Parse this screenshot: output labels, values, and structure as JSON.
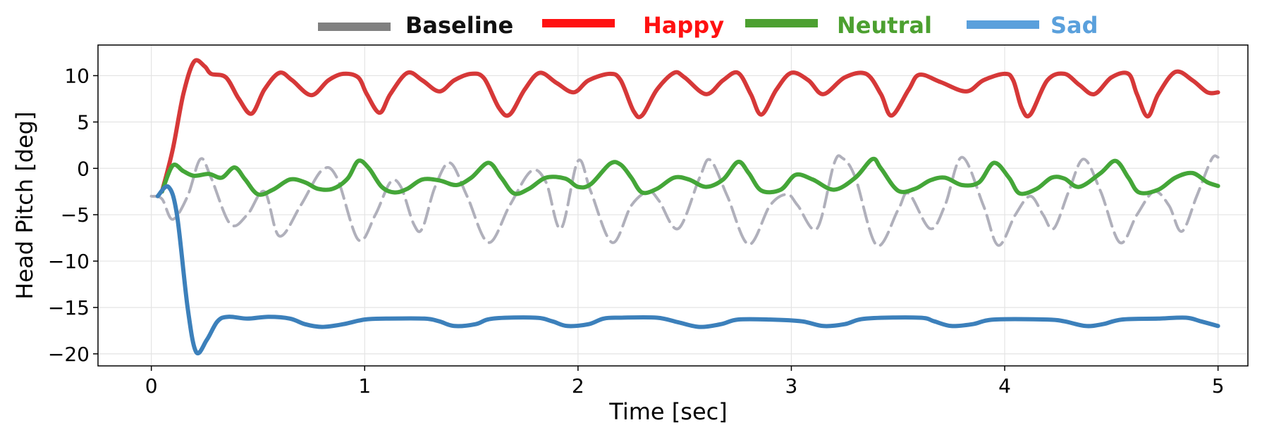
{
  "chart_data": {
    "type": "line",
    "xlabel": "Time [sec]",
    "ylabel": "Head Pitch [deg]",
    "xlim": [
      -0.25,
      5.14
    ],
    "ylim": [
      -21.3,
      13.3
    ],
    "x_ticks": [
      0,
      1,
      2,
      3,
      4,
      5
    ],
    "y_ticks": [
      10,
      5,
      0,
      -5,
      -10,
      -15,
      -20
    ],
    "y_tick_labels": [
      "10",
      "5",
      "0",
      "−5",
      "−10",
      "−15",
      "−20"
    ],
    "grid": true,
    "legend_position": "top",
    "series": [
      {
        "name": "Baseline",
        "color": "#b0b0bb",
        "legend_color": "#808080",
        "dash": true,
        "points": [
          [
            0,
            -3
          ],
          [
            0.05,
            -3.3
          ],
          [
            0.1,
            -5.5
          ],
          [
            0.17,
            -3
          ],
          [
            0.23,
            1
          ],
          [
            0.28,
            -1
          ],
          [
            0.37,
            -6
          ],
          [
            0.45,
            -5
          ],
          [
            0.53,
            -2.5
          ],
          [
            0.6,
            -7.3
          ],
          [
            0.7,
            -4
          ],
          [
            0.8,
            -0.2
          ],
          [
            0.87,
            -1
          ],
          [
            0.97,
            -7.7
          ],
          [
            1.05,
            -5
          ],
          [
            1.12,
            -1.5
          ],
          [
            1.17,
            -2
          ],
          [
            1.23,
            -6
          ],
          [
            1.27,
            -6.5
          ],
          [
            1.33,
            -2
          ],
          [
            1.4,
            0.6
          ],
          [
            1.48,
            -3
          ],
          [
            1.58,
            -8
          ],
          [
            1.68,
            -4
          ],
          [
            1.78,
            -0.3
          ],
          [
            1.85,
            -1.5
          ],
          [
            1.92,
            -6.5
          ],
          [
            2.0,
            0.8
          ],
          [
            2.06,
            -2.5
          ],
          [
            2.16,
            -8
          ],
          [
            2.25,
            -4
          ],
          [
            2.33,
            -2.5
          ],
          [
            2.38,
            -3.5
          ],
          [
            2.47,
            -6.5
          ],
          [
            2.57,
            -1
          ],
          [
            2.62,
            0.9
          ],
          [
            2.7,
            -3
          ],
          [
            2.8,
            -8.2
          ],
          [
            2.9,
            -4
          ],
          [
            2.98,
            -2.8
          ],
          [
            3.03,
            -4
          ],
          [
            3.12,
            -6.5
          ],
          [
            3.2,
            0.5
          ],
          [
            3.24,
            1.1
          ],
          [
            3.3,
            -1
          ],
          [
            3.4,
            -8.3
          ],
          [
            3.5,
            -4.5
          ],
          [
            3.55,
            -2.7
          ],
          [
            3.65,
            -6.5
          ],
          [
            3.72,
            -4
          ],
          [
            3.8,
            1.2
          ],
          [
            3.9,
            -4
          ],
          [
            3.97,
            -8.3
          ],
          [
            4.05,
            -5
          ],
          [
            4.12,
            -3
          ],
          [
            4.18,
            -5
          ],
          [
            4.23,
            -6.5
          ],
          [
            4.3,
            -2.5
          ],
          [
            4.37,
            1
          ],
          [
            4.45,
            -2.5
          ],
          [
            4.54,
            -8
          ],
          [
            4.62,
            -5
          ],
          [
            4.7,
            -2.5
          ],
          [
            4.77,
            -4
          ],
          [
            4.83,
            -6.8
          ],
          [
            4.9,
            -3
          ],
          [
            4.97,
            1
          ],
          [
            5.0,
            1.2
          ]
        ]
      },
      {
        "name": "Happy",
        "color": "#d63838",
        "legend_color": "#ff1111",
        "dash": false,
        "points": [
          [
            0.05,
            -2.5
          ],
          [
            0.1,
            2
          ],
          [
            0.15,
            8
          ],
          [
            0.2,
            11.5
          ],
          [
            0.25,
            11
          ],
          [
            0.28,
            10.2
          ],
          [
            0.35,
            9.8
          ],
          [
            0.41,
            7.5
          ],
          [
            0.47,
            5.9
          ],
          [
            0.53,
            8.5
          ],
          [
            0.6,
            10.3
          ],
          [
            0.66,
            9.5
          ],
          [
            0.75,
            7.9
          ],
          [
            0.83,
            9.5
          ],
          [
            0.9,
            10.2
          ],
          [
            0.97,
            9.8
          ],
          [
            1.01,
            8
          ],
          [
            1.07,
            6
          ],
          [
            1.12,
            8
          ],
          [
            1.2,
            10.3
          ],
          [
            1.27,
            9.5
          ],
          [
            1.35,
            8.3
          ],
          [
            1.42,
            9.5
          ],
          [
            1.5,
            10.2
          ],
          [
            1.56,
            9.7
          ],
          [
            1.63,
            6.5
          ],
          [
            1.68,
            5.8
          ],
          [
            1.75,
            8.5
          ],
          [
            1.82,
            10.3
          ],
          [
            1.9,
            9.2
          ],
          [
            1.98,
            8.2
          ],
          [
            2.05,
            9.5
          ],
          [
            2.15,
            10.2
          ],
          [
            2.2,
            9.5
          ],
          [
            2.26,
            6.2
          ],
          [
            2.3,
            5.7
          ],
          [
            2.37,
            8.5
          ],
          [
            2.45,
            10.3
          ],
          [
            2.5,
            9.8
          ],
          [
            2.6,
            8
          ],
          [
            2.68,
            9.5
          ],
          [
            2.75,
            10.3
          ],
          [
            2.81,
            8
          ],
          [
            2.86,
            5.8
          ],
          [
            2.93,
            8.5
          ],
          [
            3.0,
            10.3
          ],
          [
            3.08,
            9.5
          ],
          [
            3.15,
            8
          ],
          [
            3.25,
            9.8
          ],
          [
            3.35,
            10.2
          ],
          [
            3.42,
            8
          ],
          [
            3.47,
            5.7
          ],
          [
            3.55,
            8.5
          ],
          [
            3.6,
            10.1
          ],
          [
            3.7,
            9.3
          ],
          [
            3.82,
            8.3
          ],
          [
            3.9,
            9.5
          ],
          [
            4.0,
            10.2
          ],
          [
            4.04,
            9.5
          ],
          [
            4.08,
            6.5
          ],
          [
            4.12,
            5.8
          ],
          [
            4.2,
            9.5
          ],
          [
            4.28,
            10.2
          ],
          [
            4.35,
            9
          ],
          [
            4.42,
            8
          ],
          [
            4.5,
            9.8
          ],
          [
            4.58,
            10.2
          ],
          [
            4.62,
            8
          ],
          [
            4.67,
            5.6
          ],
          [
            4.72,
            8
          ],
          [
            4.8,
            10.4
          ],
          [
            4.88,
            9.5
          ],
          [
            4.95,
            8.2
          ],
          [
            5.0,
            8.2
          ]
        ]
      },
      {
        "name": "Neutral",
        "color": "#44a638",
        "legend_color": "#4ca030",
        "dash": false,
        "points": [
          [
            0.05,
            -2.5
          ],
          [
            0.1,
            0.3
          ],
          [
            0.15,
            -0.3
          ],
          [
            0.2,
            -0.8
          ],
          [
            0.27,
            -0.6
          ],
          [
            0.33,
            -1
          ],
          [
            0.39,
            0.1
          ],
          [
            0.44,
            -1.2
          ],
          [
            0.5,
            -2.8
          ],
          [
            0.57,
            -2.3
          ],
          [
            0.65,
            -1.2
          ],
          [
            0.72,
            -1.5
          ],
          [
            0.78,
            -2.2
          ],
          [
            0.85,
            -2.2
          ],
          [
            0.92,
            -1.1
          ],
          [
            0.97,
            0.8
          ],
          [
            1.02,
            0
          ],
          [
            1.08,
            -2
          ],
          [
            1.14,
            -2.6
          ],
          [
            1.2,
            -2.2
          ],
          [
            1.27,
            -1.2
          ],
          [
            1.35,
            -1.3
          ],
          [
            1.43,
            -1.8
          ],
          [
            1.5,
            -1
          ],
          [
            1.58,
            0.6
          ],
          [
            1.64,
            -1
          ],
          [
            1.7,
            -2.7
          ],
          [
            1.77,
            -2.2
          ],
          [
            1.85,
            -1
          ],
          [
            1.94,
            -1.1
          ],
          [
            2.0,
            -2
          ],
          [
            2.06,
            -1.7
          ],
          [
            2.15,
            0.5
          ],
          [
            2.2,
            0.4
          ],
          [
            2.25,
            -1
          ],
          [
            2.3,
            -2.6
          ],
          [
            2.37,
            -2.2
          ],
          [
            2.45,
            -1
          ],
          [
            2.52,
            -1.2
          ],
          [
            2.6,
            -2
          ],
          [
            2.68,
            -1.2
          ],
          [
            2.75,
            0.7
          ],
          [
            2.8,
            -0.5
          ],
          [
            2.86,
            -2.4
          ],
          [
            2.95,
            -2.3
          ],
          [
            3.02,
            -0.7
          ],
          [
            3.1,
            -1.2
          ],
          [
            3.2,
            -2.3
          ],
          [
            3.3,
            -1
          ],
          [
            3.38,
            1
          ],
          [
            3.42,
            0
          ],
          [
            3.5,
            -2.4
          ],
          [
            3.58,
            -2.2
          ],
          [
            3.65,
            -1.3
          ],
          [
            3.72,
            -1
          ],
          [
            3.8,
            -1.8
          ],
          [
            3.88,
            -1.5
          ],
          [
            3.95,
            0.6
          ],
          [
            4.02,
            -1
          ],
          [
            4.07,
            -2.7
          ],
          [
            4.15,
            -2.2
          ],
          [
            4.22,
            -1
          ],
          [
            4.28,
            -1.1
          ],
          [
            4.35,
            -2
          ],
          [
            4.45,
            -0.5
          ],
          [
            4.52,
            0.8
          ],
          [
            4.58,
            -1
          ],
          [
            4.63,
            -2.6
          ],
          [
            4.72,
            -2.3
          ],
          [
            4.8,
            -1
          ],
          [
            4.88,
            -0.5
          ],
          [
            4.95,
            -1.5
          ],
          [
            5.0,
            -1.9
          ]
        ]
      },
      {
        "name": "Sad",
        "color": "#3c80bb",
        "legend_color": "#5aa0dc",
        "dash": false,
        "points": [
          [
            0.03,
            -3
          ],
          [
            0.08,
            -2
          ],
          [
            0.12,
            -5
          ],
          [
            0.17,
            -15
          ],
          [
            0.21,
            -19.8
          ],
          [
            0.26,
            -18.5
          ],
          [
            0.31,
            -16.5
          ],
          [
            0.36,
            -16
          ],
          [
            0.45,
            -16.2
          ],
          [
            0.55,
            -16
          ],
          [
            0.65,
            -16.2
          ],
          [
            0.72,
            -16.8
          ],
          [
            0.8,
            -17.1
          ],
          [
            0.9,
            -16.8
          ],
          [
            1.0,
            -16.3
          ],
          [
            1.1,
            -16.2
          ],
          [
            1.28,
            -16.2
          ],
          [
            1.35,
            -16.5
          ],
          [
            1.42,
            -17
          ],
          [
            1.52,
            -16.8
          ],
          [
            1.6,
            -16.2
          ],
          [
            1.8,
            -16.1
          ],
          [
            1.88,
            -16.5
          ],
          [
            1.95,
            -17
          ],
          [
            2.05,
            -16.8
          ],
          [
            2.12,
            -16.2
          ],
          [
            2.2,
            -16.1
          ],
          [
            2.37,
            -16.1
          ],
          [
            2.47,
            -16.6
          ],
          [
            2.57,
            -17.1
          ],
          [
            2.67,
            -16.8
          ],
          [
            2.75,
            -16.3
          ],
          [
            2.9,
            -16.3
          ],
          [
            3.05,
            -16.5
          ],
          [
            3.15,
            -17
          ],
          [
            3.25,
            -16.8
          ],
          [
            3.35,
            -16.2
          ],
          [
            3.6,
            -16.1
          ],
          [
            3.67,
            -16.5
          ],
          [
            3.75,
            -17
          ],
          [
            3.85,
            -16.8
          ],
          [
            3.95,
            -16.3
          ],
          [
            4.2,
            -16.3
          ],
          [
            4.28,
            -16.5
          ],
          [
            4.38,
            -17
          ],
          [
            4.46,
            -16.8
          ],
          [
            4.55,
            -16.3
          ],
          [
            4.72,
            -16.2
          ],
          [
            4.85,
            -16.1
          ],
          [
            4.92,
            -16.5
          ],
          [
            5.0,
            -17
          ]
        ]
      }
    ]
  }
}
